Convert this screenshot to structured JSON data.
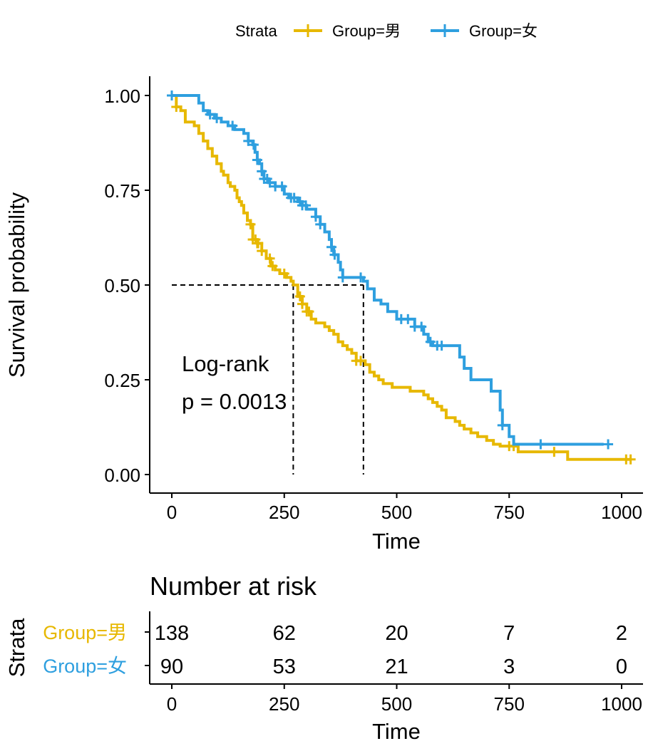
{
  "chart_data": {
    "type": "line",
    "legend": {
      "title": "Strata",
      "position": "top"
    },
    "xlabel": "Time",
    "ylabel": "Survival probability",
    "xlim": [
      0,
      1000
    ],
    "ylim": [
      0,
      1
    ],
    "x_ticks": [
      "0",
      "250",
      "500",
      "750",
      "1000"
    ],
    "y_ticks": [
      "0.00",
      "0.25",
      "0.50",
      "0.75",
      "1.00"
    ],
    "annotation": {
      "line1": "Log-rank",
      "line2": "p = 0.0013"
    },
    "median_line": {
      "y": 0.5,
      "x_values": [
        270,
        426
      ]
    },
    "colors": {
      "male": "#E7B800",
      "female": "#2E9FDF"
    },
    "series": [
      {
        "name": "Group=男",
        "color": "#E7B800",
        "points": [
          [
            0,
            1.0
          ],
          [
            10,
            0.97
          ],
          [
            20,
            0.96
          ],
          [
            30,
            0.93
          ],
          [
            50,
            0.92
          ],
          [
            60,
            0.9
          ],
          [
            70,
            0.88
          ],
          [
            80,
            0.86
          ],
          [
            90,
            0.84
          ],
          [
            100,
            0.82
          ],
          [
            110,
            0.8
          ],
          [
            115,
            0.79
          ],
          [
            125,
            0.77
          ],
          [
            130,
            0.76
          ],
          [
            140,
            0.75
          ],
          [
            145,
            0.73
          ],
          [
            150,
            0.72
          ],
          [
            155,
            0.71
          ],
          [
            160,
            0.69
          ],
          [
            168,
            0.67
          ],
          [
            175,
            0.66
          ],
          [
            180,
            0.64
          ],
          [
            180,
            0.62
          ],
          [
            190,
            0.61
          ],
          [
            200,
            0.59
          ],
          [
            210,
            0.57
          ],
          [
            220,
            0.55
          ],
          [
            230,
            0.54
          ],
          [
            240,
            0.53
          ],
          [
            255,
            0.52
          ],
          [
            265,
            0.51
          ],
          [
            270,
            0.5
          ],
          [
            280,
            0.47
          ],
          [
            290,
            0.45
          ],
          [
            300,
            0.43
          ],
          [
            310,
            0.41
          ],
          [
            320,
            0.4
          ],
          [
            340,
            0.39
          ],
          [
            350,
            0.38
          ],
          [
            360,
            0.37
          ],
          [
            370,
            0.35
          ],
          [
            380,
            0.34
          ],
          [
            390,
            0.33
          ],
          [
            400,
            0.32
          ],
          [
            410,
            0.3
          ],
          [
            430,
            0.29
          ],
          [
            440,
            0.27
          ],
          [
            450,
            0.26
          ],
          [
            460,
            0.25
          ],
          [
            470,
            0.24
          ],
          [
            490,
            0.23
          ],
          [
            530,
            0.22
          ],
          [
            560,
            0.21
          ],
          [
            570,
            0.2
          ],
          [
            580,
            0.19
          ],
          [
            590,
            0.18
          ],
          [
            600,
            0.17
          ],
          [
            610,
            0.15
          ],
          [
            630,
            0.14
          ],
          [
            640,
            0.13
          ],
          [
            650,
            0.12
          ],
          [
            665,
            0.11
          ],
          [
            680,
            0.1
          ],
          [
            700,
            0.09
          ],
          [
            715,
            0.08
          ],
          [
            730,
            0.075
          ],
          [
            770,
            0.06
          ],
          [
            880,
            0.04
          ],
          [
            1020,
            0.04
          ]
        ],
        "censor_x": [
          10,
          175,
          180,
          186,
          190,
          192,
          200,
          218,
          224,
          250,
          285,
          290,
          300,
          305,
          410,
          420,
          750,
          760,
          850,
          1010,
          1020
        ],
        "at_risk": [
          "138",
          "62",
          "20",
          "7",
          "2"
        ]
      },
      {
        "name": "Group=女",
        "color": "#2E9FDF",
        "points": [
          [
            0,
            1.0
          ],
          [
            60,
            0.99
          ],
          [
            60,
            0.98
          ],
          [
            70,
            0.96
          ],
          [
            80,
            0.95
          ],
          [
            95,
            0.94
          ],
          [
            110,
            0.93
          ],
          [
            125,
            0.92
          ],
          [
            140,
            0.91
          ],
          [
            160,
            0.9
          ],
          [
            170,
            0.88
          ],
          [
            180,
            0.87
          ],
          [
            185,
            0.85
          ],
          [
            190,
            0.83
          ],
          [
            195,
            0.82
          ],
          [
            200,
            0.8
          ],
          [
            205,
            0.78
          ],
          [
            215,
            0.77
          ],
          [
            230,
            0.76
          ],
          [
            250,
            0.74
          ],
          [
            260,
            0.73
          ],
          [
            280,
            0.72
          ],
          [
            290,
            0.71
          ],
          [
            300,
            0.7
          ],
          [
            320,
            0.68
          ],
          [
            330,
            0.66
          ],
          [
            340,
            0.64
          ],
          [
            350,
            0.62
          ],
          [
            355,
            0.6
          ],
          [
            360,
            0.58
          ],
          [
            370,
            0.56
          ],
          [
            375,
            0.54
          ],
          [
            380,
            0.52
          ],
          [
            426,
            0.51
          ],
          [
            435,
            0.49
          ],
          [
            450,
            0.46
          ],
          [
            465,
            0.45
          ],
          [
            480,
            0.43
          ],
          [
            500,
            0.41
          ],
          [
            540,
            0.39
          ],
          [
            560,
            0.37
          ],
          [
            570,
            0.35
          ],
          [
            580,
            0.34
          ],
          [
            640,
            0.31
          ],
          [
            650,
            0.28
          ],
          [
            665,
            0.25
          ],
          [
            710,
            0.22
          ],
          [
            730,
            0.17
          ],
          [
            735,
            0.13
          ],
          [
            750,
            0.1
          ],
          [
            760,
            0.08
          ],
          [
            960,
            0.08
          ]
        ],
        "censor_x": [
          0,
          85,
          100,
          135,
          170,
          182,
          190,
          200,
          205,
          212,
          218,
          230,
          245,
          265,
          272,
          285,
          290,
          298,
          320,
          330,
          355,
          362,
          380,
          420,
          510,
          525,
          540,
          555,
          575,
          590,
          600,
          735,
          820,
          970
        ],
        "at_risk": [
          "90",
          "53",
          "21",
          "3",
          "0"
        ]
      }
    ]
  },
  "risk_table": {
    "title": "Number at risk",
    "ylabel": "Strata",
    "xlabel": "Time",
    "x_ticks": [
      "0",
      "250",
      "500",
      "750",
      "1000"
    ]
  }
}
